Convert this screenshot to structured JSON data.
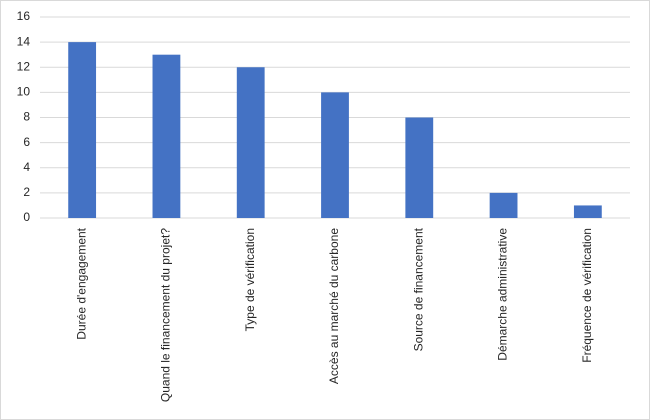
{
  "chart_data": {
    "type": "bar",
    "categories": [
      "Durée d'engagement",
      "Quand le financement du projet?",
      "Type de vérification",
      "Accès au marché du carbone",
      "Source de financement",
      "Démarche administrative",
      "Fréquence de vérification"
    ],
    "values": [
      14,
      13,
      12,
      10,
      8,
      2,
      1
    ],
    "color": "#4472c4",
    "ylim": [
      0,
      16
    ],
    "yticks": [
      0,
      2,
      4,
      6,
      8,
      10,
      12,
      14,
      16
    ],
    "grid": true
  }
}
